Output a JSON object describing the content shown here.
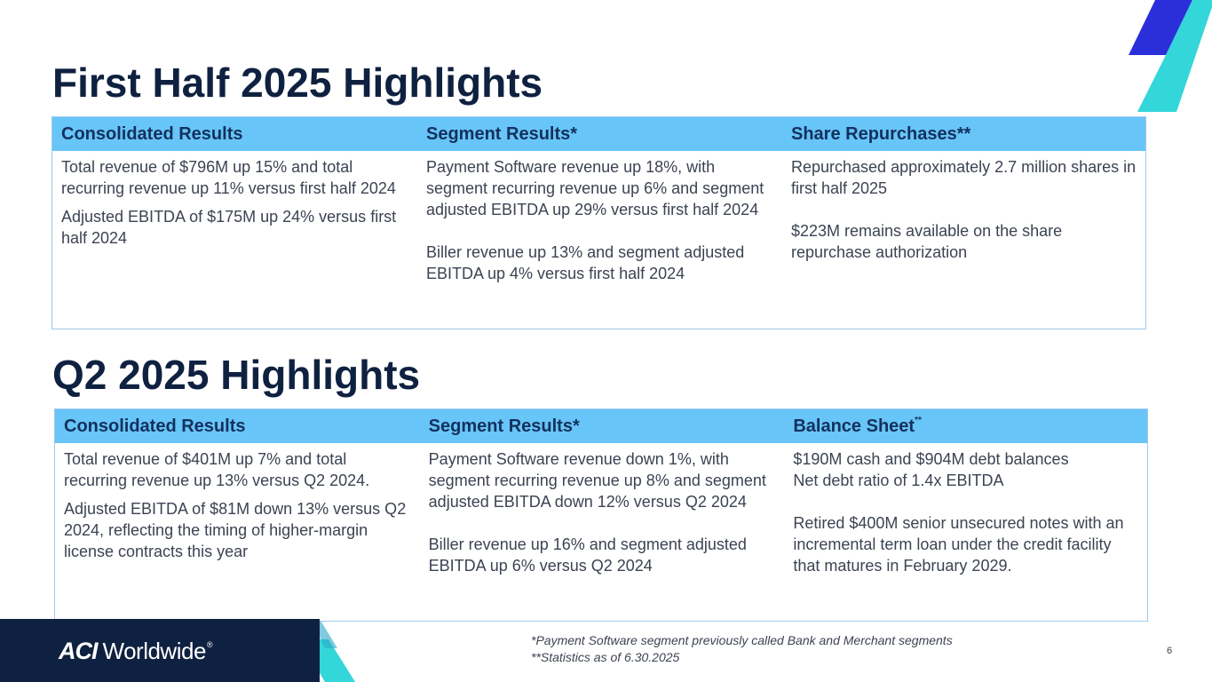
{
  "h1": {
    "title": "First Half 2025 Highlights",
    "headers": [
      "Consolidated Results",
      "Segment Results*",
      "Share Repurchases**"
    ],
    "col1": [
      "Total revenue of $796M up 15% and total recurring revenue up 11% versus first half 2024",
      "Adjusted EBITDA of $175M up 24% versus first half 2024"
    ],
    "col2": [
      "Payment Software revenue up 18%, with segment recurring revenue up 6% and segment adjusted EBITDA up 29% versus first half 2024",
      "Biller revenue up 13% and segment adjusted EBITDA up 4% versus first half 2024"
    ],
    "col3": [
      "Repurchased approximately 2.7 million shares in first half 2025",
      "$223M remains available on the share repurchase authorization"
    ]
  },
  "q2": {
    "title": "Q2 2025 Highlights",
    "header1": "Consolidated Results",
    "header2": "Segment Results*",
    "header3": "Balance Sheet",
    "header3_sup": "**",
    "col1": [
      "Total revenue of $401M up 7% and total recurring revenue up 13% versus Q2 2024.",
      "Adjusted EBITDA of $81M down 13% versus Q2 2024, reflecting the timing of higher-margin license contracts this year"
    ],
    "col2": [
      "Payment Software revenue down 1%, with segment recurring revenue up 8% and segment adjusted EBITDA down 12% versus Q2 2024",
      "Biller revenue up 16% and segment adjusted EBITDA up 6% versus Q2 2024"
    ],
    "col3_line1": "$190M cash and $904M debt balances",
    "col3_line2": "Net debt ratio of 1.4x EBITDA",
    "col3_para2": "Retired $400M senior unsecured notes with an incremental term loan under the credit facility that matures in February 2029."
  },
  "footer": {
    "logo_aci": "ACI",
    "logo_worldwide": "Worldwide",
    "logo_reg": "®",
    "note1": "*Payment Software segment previously called Bank and Merchant segments",
    "note2": "**Statistics as of 6.30.2025",
    "page": "6"
  },
  "colors": {
    "title": "#0f2140",
    "header_bg": "#67c5f7",
    "header_text": "#14305e",
    "accent_blue": "#2b2fd9",
    "accent_teal": "#33d6d9"
  }
}
